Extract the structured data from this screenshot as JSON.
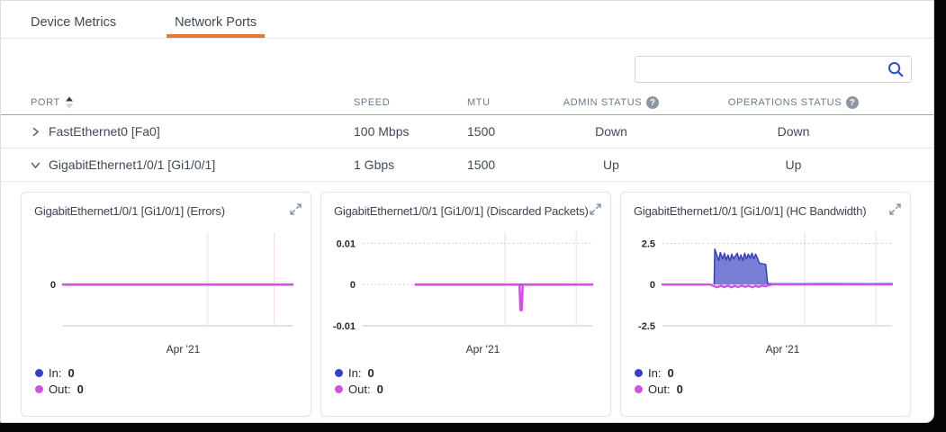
{
  "colors": {
    "accent_orange": "#e8763b",
    "series_in": "#383fc3",
    "series_out": "#cf52e1",
    "search_icon_blue": "#2f55c7"
  },
  "tabs": [
    {
      "label": "Device Metrics",
      "active": false
    },
    {
      "label": "Network Ports",
      "active": true
    }
  ],
  "search": {
    "value": "",
    "placeholder": ""
  },
  "table": {
    "columns": [
      "PORT",
      "SPEED",
      "MTU",
      "ADMIN STATUS",
      "OPERATIONS STATUS"
    ],
    "sort": {
      "column": "PORT",
      "direction": "asc"
    },
    "rows": [
      {
        "port": "FastEthernet0 [Fa0]",
        "speed": "100 Mbps",
        "mtu": "1500",
        "admin_status": "Down",
        "operations_status": "Down",
        "expanded": false
      },
      {
        "port": "GigabitEthernet1/0/1 [Gi1/0/1]",
        "speed": "1 Gbps",
        "mtu": "1500",
        "admin_status": "Up",
        "operations_status": "Up",
        "expanded": true
      }
    ]
  },
  "charts": [
    {
      "title": "GigabitEthernet1/0/1 [Gi1/0/1] (Errors)",
      "x_axis_label": "Apr '21",
      "legend": [
        {
          "label": "In",
          "value": "0"
        },
        {
          "label": "Out",
          "value": "0"
        }
      ],
      "chart_data": {
        "type": "line",
        "title": "GigabitEthernet1/0/1 [Gi1/0/1] (Errors)",
        "xlabel": "Apr '21",
        "value_top": 1.4,
        "value_bottom": -1.1,
        "yticks": [
          {
            "label": "0",
            "value": 0,
            "style": "none"
          }
        ],
        "baseline_label": "",
        "xgrid": [
          0.63,
          0.92
        ],
        "series": [
          {
            "name": "In",
            "color": "#383fc3",
            "width": 2.2,
            "points": [
              [
                0,
                0
              ],
              [
                1,
                0
              ]
            ]
          },
          {
            "name": "Out",
            "color": "#cf52e1",
            "width": 2.6,
            "points": [
              [
                0,
                0
              ],
              [
                1,
                0
              ]
            ]
          }
        ]
      }
    },
    {
      "title": "GigabitEthernet1/0/1 [Gi1/0/1] (Discarded Packets)",
      "x_axis_label": "Apr '21",
      "legend": [
        {
          "label": "In",
          "value": "0"
        },
        {
          "label": "Out",
          "value": "0"
        }
      ],
      "chart_data": {
        "type": "line",
        "title": "GigabitEthernet1/0/1 [Gi1/0/1] (Discarded Packets)",
        "xlabel": "Apr '21",
        "value_top": 0.0127,
        "value_bottom": -0.01,
        "yticks": [
          {
            "label": "0.01",
            "value": 0.01,
            "style": "dotted"
          },
          {
            "label": "0",
            "value": 0,
            "style": "dotted"
          }
        ],
        "baseline_label": "-0.01",
        "xgrid": [
          0.62,
          0.93
        ],
        "series": [
          {
            "name": "In",
            "color": "#383fc3",
            "width": 2.2,
            "points": [
              [
                0.23,
                0
              ],
              [
                1,
                0
              ]
            ]
          },
          {
            "name": "Out",
            "color": "#cf52e1",
            "width": 2.6,
            "points": [
              [
                0.23,
                0
              ],
              [
                0.683,
                0
              ],
              [
                0.687,
                -0.0062
              ],
              [
                0.693,
                -0.0062
              ],
              [
                0.697,
                0
              ],
              [
                1,
                0
              ]
            ]
          }
        ]
      }
    },
    {
      "title": "GigabitEthernet1/0/1 [Gi1/0/1] (HC Bandwidth)",
      "x_axis_label": "Apr '21",
      "legend": [
        {
          "label": "In",
          "value": "0"
        },
        {
          "label": "Out",
          "value": "0"
        }
      ],
      "chart_data": {
        "type": "area",
        "title": "GigabitEthernet1/0/1 [Gi1/0/1] (HC Bandwidth)",
        "xlabel": "Apr '21",
        "value_top": 3.18,
        "value_bottom": -2.5,
        "yticks": [
          {
            "label": "2.5",
            "value": 2.5,
            "style": "dotted"
          },
          {
            "label": "0",
            "value": 0,
            "style": "none"
          }
        ],
        "baseline_label": "-2.5",
        "xgrid": [
          0.62,
          0.93
        ],
        "series": [
          {
            "name": "In",
            "color": "#3a3fb8",
            "width": 1.5,
            "fill": "rgba(98,103,206,0.85)",
            "points": [
              [
                0.225,
                0.05
              ],
              [
                0.228,
                2.15
              ],
              [
                0.238,
                1.75
              ],
              [
                0.245,
                1.45
              ],
              [
                0.252,
                1.95
              ],
              [
                0.262,
                1.55
              ],
              [
                0.27,
                1.9
              ],
              [
                0.278,
                1.5
              ],
              [
                0.286,
                1.8
              ],
              [
                0.294,
                1.45
              ],
              [
                0.302,
                1.85
              ],
              [
                0.31,
                1.55
              ],
              [
                0.318,
                1.75
              ],
              [
                0.326,
                1.9
              ],
              [
                0.334,
                1.5
              ],
              [
                0.342,
                1.8
              ],
              [
                0.35,
                1.45
              ],
              [
                0.358,
                1.9
              ],
              [
                0.366,
                1.55
              ],
              [
                0.374,
                1.85
              ],
              [
                0.382,
                1.6
              ],
              [
                0.39,
                1.9
              ],
              [
                0.398,
                1.55
              ],
              [
                0.406,
                1.85
              ],
              [
                0.414,
                1.6
              ],
              [
                0.422,
                1.3
              ],
              [
                0.43,
                1.28
              ],
              [
                0.44,
                1.25
              ],
              [
                0.45,
                1.22
              ],
              [
                0.458,
                0.06
              ],
              [
                0.52,
                0.05
              ],
              [
                0.7,
                0.06
              ],
              [
                0.9,
                0.05
              ],
              [
                1,
                0.06
              ]
            ]
          },
          {
            "name": "Out",
            "color": "#cf52e1",
            "width": 2.4,
            "points": [
              [
                0,
                0
              ],
              [
                0.21,
                0
              ],
              [
                0.225,
                -0.1
              ],
              [
                0.24,
                -0.16
              ],
              [
                0.255,
                -0.07
              ],
              [
                0.27,
                -0.15
              ],
              [
                0.285,
                -0.06
              ],
              [
                0.3,
                -0.16
              ],
              [
                0.315,
                -0.08
              ],
              [
                0.33,
                -0.15
              ],
              [
                0.345,
                -0.06
              ],
              [
                0.36,
                -0.14
              ],
              [
                0.375,
                -0.07
              ],
              [
                0.39,
                -0.16
              ],
              [
                0.405,
                -0.08
              ],
              [
                0.42,
                -0.14
              ],
              [
                0.435,
                -0.06
              ],
              [
                0.45,
                -0.1
              ],
              [
                0.465,
                -0.03
              ],
              [
                0.48,
                0.02
              ],
              [
                1,
                0.02
              ]
            ]
          }
        ]
      }
    }
  ]
}
